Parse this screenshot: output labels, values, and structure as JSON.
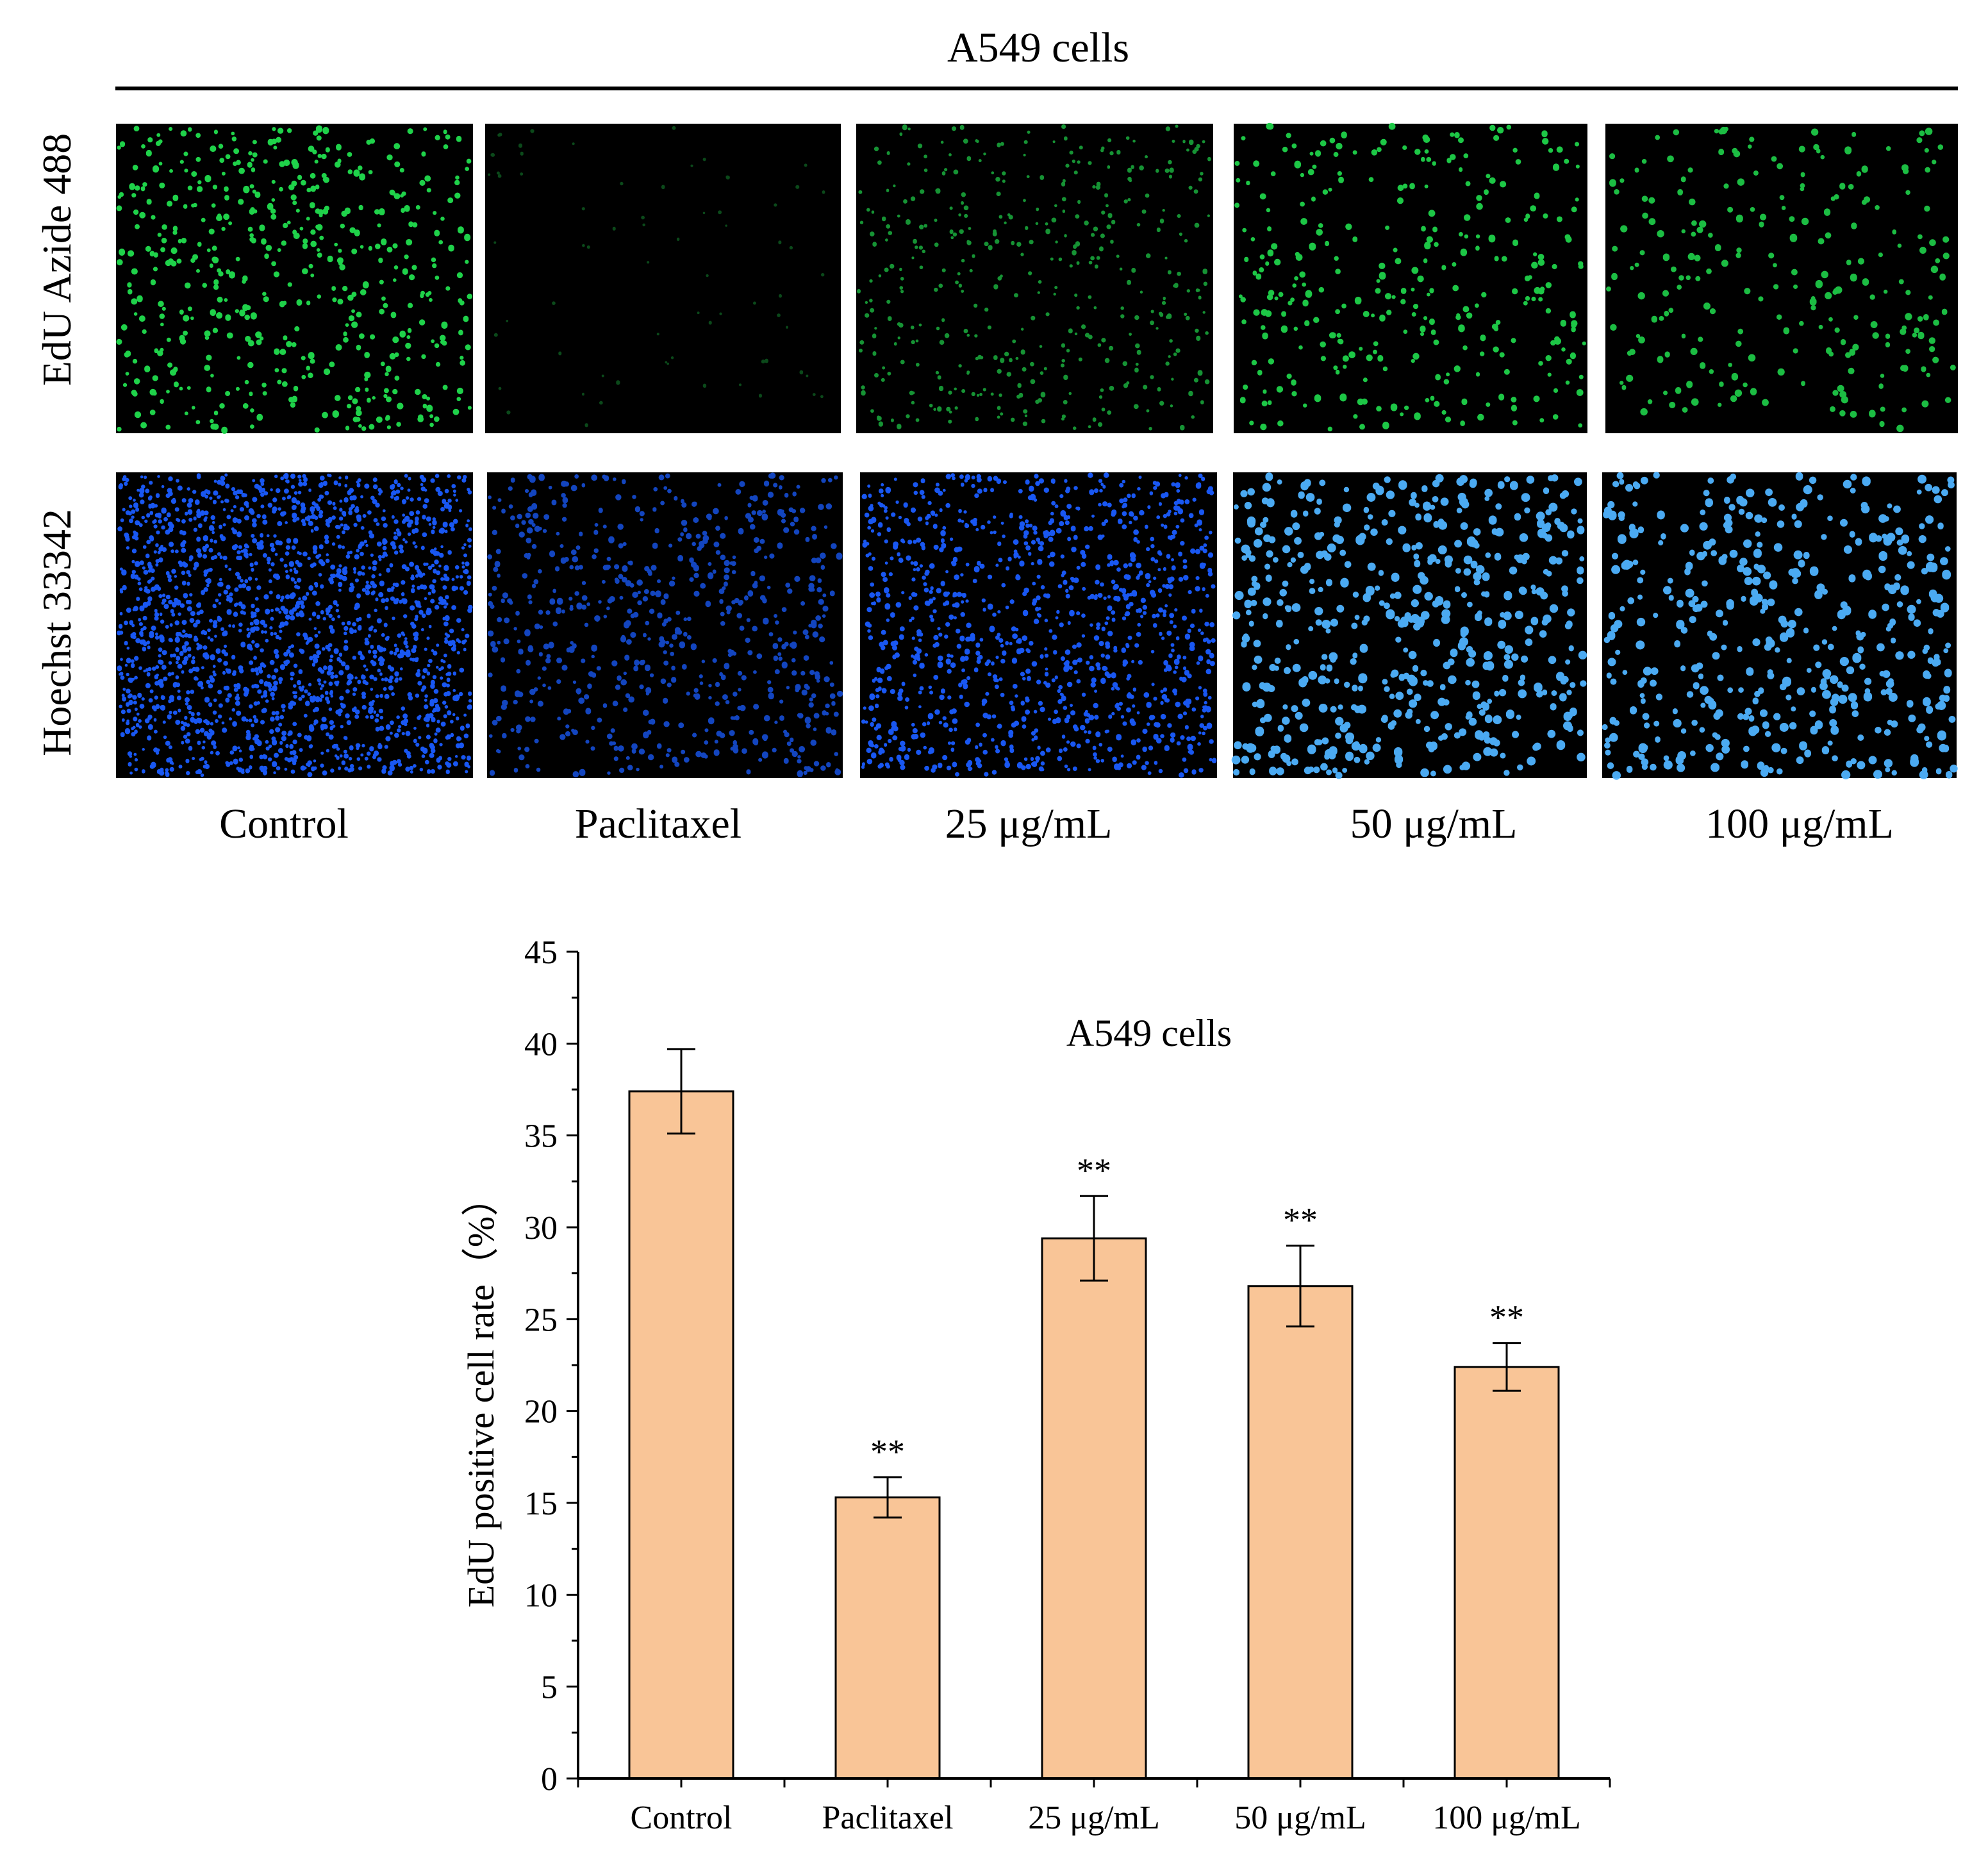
{
  "panel_a": {
    "title": "A549 cells",
    "row_labels": [
      "EdU Azide 488",
      "Hoechst 33342"
    ],
    "column_labels": [
      "Control",
      "Paclitaxel",
      "25 μg/mL",
      "50 μg/mL",
      "100 μg/mL"
    ],
    "colors": {
      "edu_stain": "#1fd24a",
      "hoechst_stain": "#1a5cff",
      "background": "#000000"
    }
  },
  "chart_data": {
    "type": "bar",
    "title": "A549 cells",
    "xlabel": "",
    "ylabel": "EdU positive cell rate（%）",
    "categories": [
      "Control",
      "Paclitaxel",
      "25 μg/mL",
      "50 μg/mL",
      "100 μg/mL"
    ],
    "values": [
      37.4,
      15.3,
      29.4,
      26.8,
      22.4
    ],
    "errors": [
      2.3,
      1.1,
      2.3,
      2.2,
      1.3
    ],
    "annotations": [
      "",
      "**",
      "**",
      "**",
      "**"
    ],
    "ylim": [
      0,
      45
    ],
    "yticks": [
      "0",
      "5",
      "10",
      "15",
      "20",
      "25",
      "30",
      "35",
      "40",
      "45"
    ],
    "grid": false,
    "bar_color": "#f9c597"
  }
}
